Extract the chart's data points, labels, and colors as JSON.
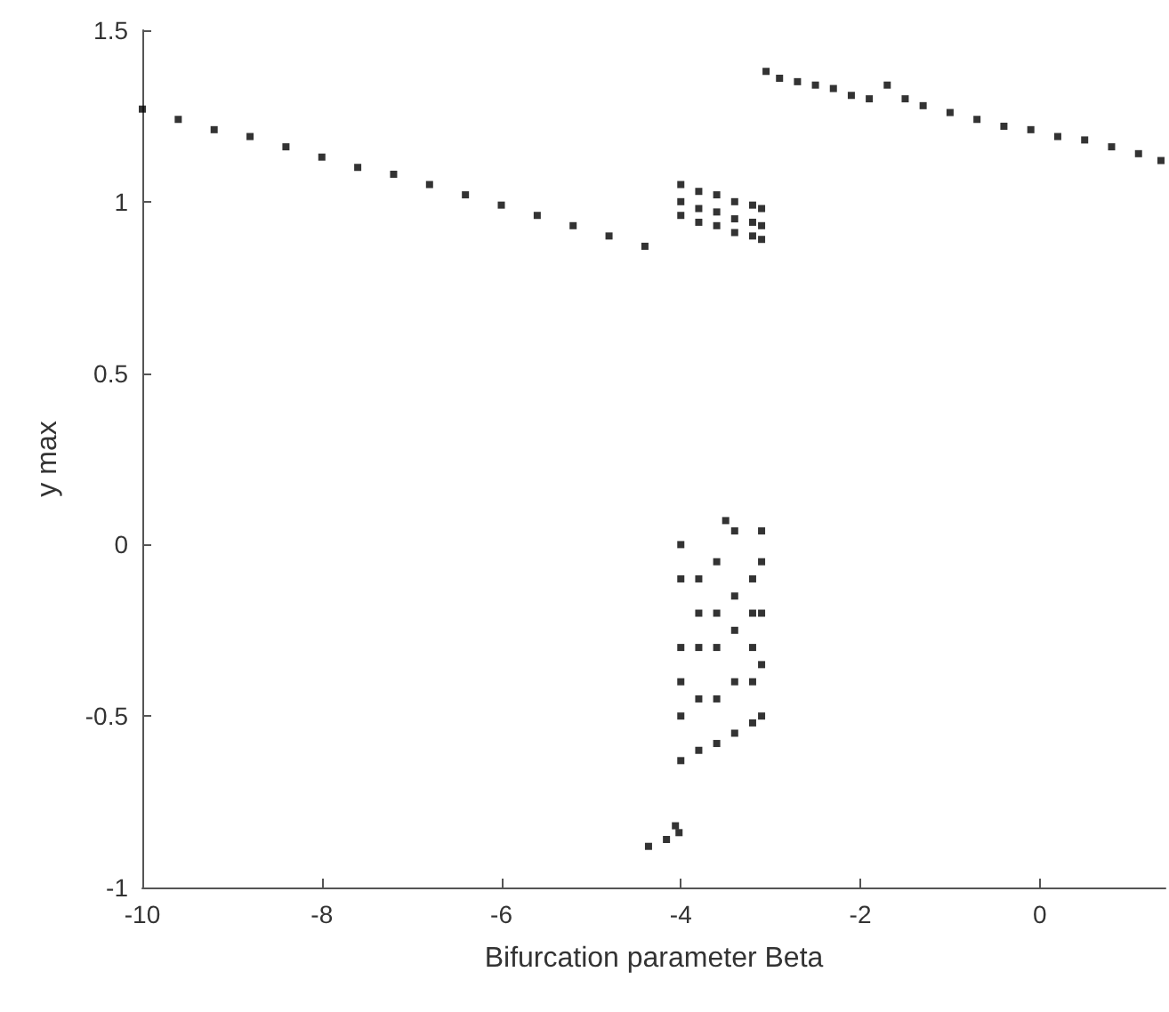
{
  "chart_data": {
    "type": "scatter",
    "xlabel": "Bifurcation parameter Beta",
    "ylabel": "y max",
    "xlim": [
      -10,
      1.4
    ],
    "xticks": [
      -10,
      -8,
      -6,
      -4,
      -2,
      0
    ],
    "ylim": [
      -1,
      1.5
    ],
    "yticks": [
      -1,
      -0.5,
      0,
      0.5,
      1,
      1.5
    ],
    "grid": false,
    "marker": "square",
    "series": [
      {
        "color": "#000000",
        "x": [
          -10,
          -9.6,
          -9.2,
          -8.8,
          -8.4,
          -8,
          -7.6,
          -7.2,
          -6.8,
          -6.4,
          -6,
          -5.6,
          -5.2,
          -4.8,
          -4.4,
          -3.05,
          -2.9,
          -2.7,
          -2.5,
          -2.3,
          -2.1,
          -1.9,
          -1.7,
          -1.5,
          -1.3,
          -1.0,
          -0.7,
          -0.4,
          -0.1,
          0.2,
          0.5,
          0.8,
          1.1,
          1.35,
          -4,
          -4,
          -4,
          -3.8,
          -3.8,
          -3.8,
          -3.6,
          -3.6,
          -3.6,
          -3.4,
          -3.4,
          -3.4,
          -3.2,
          -3.2,
          -3.2,
          -3.1,
          -3.1,
          -3.1,
          -4,
          -4,
          -4,
          -4,
          -4,
          -4,
          -3.8,
          -3.8,
          -3.8,
          -3.8,
          -3.8,
          -3.6,
          -3.6,
          -3.6,
          -3.6,
          -3.6,
          -3.5,
          -3.4,
          -3.4,
          -3.4,
          -3.4,
          -3.4,
          -3.2,
          -3.2,
          -3.2,
          -3.2,
          -3.2,
          -3.1,
          -3.1,
          -3.1,
          -3.1,
          -3.1,
          -4.36,
          -4.16,
          -4.06,
          -4.02
        ],
        "values": [
          1.27,
          1.24,
          1.21,
          1.19,
          1.16,
          1.13,
          1.1,
          1.08,
          1.05,
          1.02,
          0.99,
          0.96,
          0.93,
          0.9,
          0.87,
          1.38,
          1.36,
          1.35,
          1.34,
          1.33,
          1.31,
          1.3,
          1.34,
          1.3,
          1.28,
          1.26,
          1.24,
          1.22,
          1.21,
          1.19,
          1.18,
          1.16,
          1.14,
          1.12,
          1.05,
          1.0,
          0.96,
          1.03,
          0.98,
          0.94,
          1.02,
          0.97,
          0.93,
          1.0,
          0.95,
          0.91,
          0.99,
          0.94,
          0.9,
          0.98,
          0.93,
          0.89,
          -0.63,
          -0.5,
          -0.4,
          -0.3,
          -0.1,
          0.0,
          -0.6,
          -0.45,
          -0.3,
          -0.2,
          -0.1,
          -0.58,
          -0.45,
          -0.3,
          -0.2,
          -0.05,
          0.07,
          -0.55,
          -0.4,
          -0.25,
          -0.15,
          0.04,
          -0.52,
          -0.4,
          -0.3,
          -0.2,
          -0.1,
          -0.5,
          -0.35,
          -0.2,
          -0.05,
          0.04,
          -0.88,
          -0.86,
          -0.82,
          -0.84
        ]
      }
    ]
  }
}
